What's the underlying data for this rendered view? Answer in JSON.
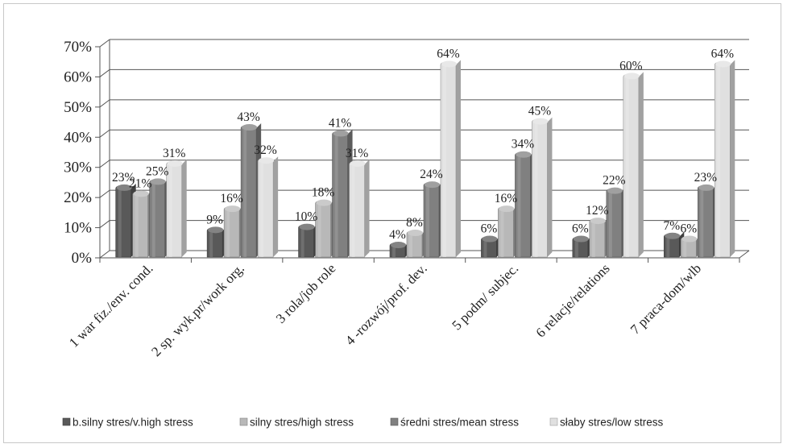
{
  "chart_data": {
    "type": "bar",
    "title": "",
    "xlabel": "",
    "ylabel": "",
    "ylim": [
      0,
      0.7
    ],
    "y_ticks": [
      "0%",
      "10%",
      "20%",
      "30%",
      "40%",
      "50%",
      "60%",
      "70%"
    ],
    "grid": true,
    "legend_position": "bottom",
    "categories": [
      "1 war fiz./env. cond.",
      "2 sp. wyk.pr/work org.",
      "3 rola/job role",
      "4 -rozwój/prof. dev.",
      "5 podm/ subjec.",
      "6 relacje/relations",
      "7 praca-dom/wlb"
    ],
    "series": [
      {
        "name": "b.silny stres/v.high stress",
        "color": "#595959",
        "values": [
          0.23,
          0.09,
          0.1,
          0.04,
          0.06,
          0.06,
          0.07
        ],
        "labels": [
          "23%",
          "9%",
          "10%",
          "4%",
          "6%",
          "6%",
          "7%"
        ]
      },
      {
        "name": "silny stres/high stress",
        "color": "#b8b8b8",
        "values": [
          0.21,
          0.16,
          0.18,
          0.08,
          0.16,
          0.12,
          0.06
        ],
        "labels": [
          "21%",
          "16%",
          "18%",
          "8%",
          "16%",
          "12%",
          "6%"
        ]
      },
      {
        "name": "średni stres/mean stress",
        "color": "#808080",
        "values": [
          0.25,
          0.43,
          0.41,
          0.24,
          0.34,
          0.22,
          0.23
        ],
        "labels": [
          "25%",
          "43%",
          "41%",
          "24%",
          "34%",
          "22%",
          "23%"
        ]
      },
      {
        "name": "słaby stres/low stress",
        "color": "#e0e0e0",
        "values": [
          0.31,
          0.32,
          0.31,
          0.64,
          0.45,
          0.6,
          0.64
        ],
        "labels": [
          "31%",
          "32%",
          "31%",
          "64%",
          "45%",
          "60%",
          "64%"
        ]
      }
    ]
  }
}
